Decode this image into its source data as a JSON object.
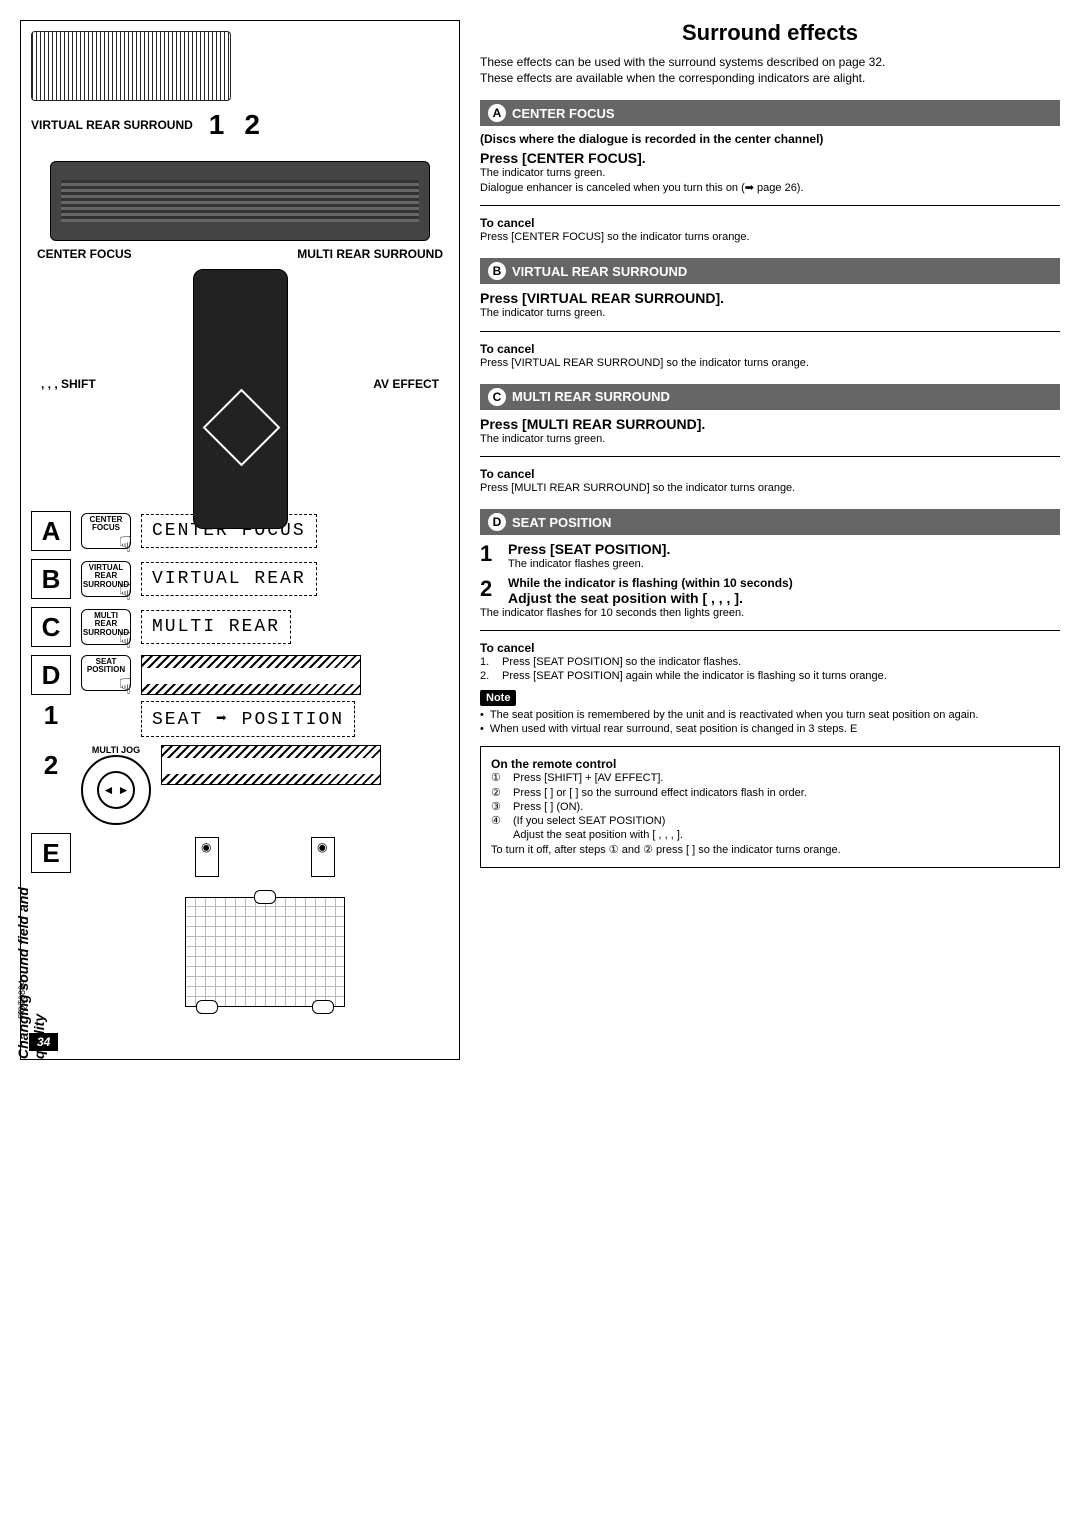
{
  "pageNumber": "34",
  "docId": "RQT6894",
  "sideHeading": "Changing sound field and quality",
  "title": "Surround effects",
  "intro1": "These effects can be used with the surround systems described on page 32.",
  "intro2": "These effects are available when the corresponding indicators are alight.",
  "secA": {
    "letter": "A",
    "heading": "CENTER FOCUS",
    "note": "(Discs where the dialogue is recorded in the center channel)",
    "press": "Press [CENTER FOCUS].",
    "ind": "The indicator turns green.",
    "extra": "Dialogue enhancer is canceled when you turn this on (➡ page 26).",
    "cancelH": "To cancel",
    "cancel": "Press [CENTER FOCUS] so the indicator turns orange."
  },
  "secB": {
    "letter": "B",
    "heading": "VIRTUAL REAR SURROUND",
    "press": "Press [VIRTUAL REAR SURROUND].",
    "ind": "The indicator turns green.",
    "cancelH": "To cancel",
    "cancel": "Press [VIRTUAL REAR SURROUND] so the indicator turns orange."
  },
  "secC": {
    "letter": "C",
    "heading": "MULTI REAR SURROUND",
    "press": "Press [MULTI REAR SURROUND].",
    "ind": "The indicator turns green.",
    "cancelH": "To cancel",
    "cancel": "Press [MULTI REAR SURROUND] so the indicator turns orange."
  },
  "secD": {
    "letter": "D",
    "heading": "SEAT POSITION",
    "s1h": "Press [SEAT POSITION].",
    "s1b": "The indicator flashes green.",
    "s2a": "While the indicator is flashing (within 10 seconds)",
    "s2b": "Adjust the seat position with [    ,    ,    ,    ].",
    "after": "The indicator flashes for 10 seconds then lights green.",
    "cancelH": "To cancel",
    "c1": "Press [SEAT POSITION] so the indicator flashes.",
    "c2": "Press [SEAT POSITION] again while the indicator is flashing so it turns orange.",
    "noteLabel": "Note",
    "n1": "The seat position is remembered by the unit and is reactivated when you turn seat position on again.",
    "n2": "When used with virtual rear surround, seat position is changed in 3 steps. E"
  },
  "remote": {
    "heading": "On the remote control",
    "r1": "Press [SHIFT] + [AV EFFECT].",
    "r2": "Press [   ] or [   ] so the surround effect indicators flash in order.",
    "r3": "Press [   ] (ON).",
    "r4": "(If you select SEAT POSITION)",
    "r4b": "Adjust the seat position with [   ,   ,   ,   ].",
    "off": "To turn it off, after steps ① and ② press [   ] so the indicator turns orange."
  },
  "left": {
    "topLabel": "VIRTUAL REAR SURROUND",
    "n1": "1",
    "n2": "2",
    "cfLabel": "CENTER FOCUS",
    "mrsLabel": "MULTI REAR SURROUND",
    "arrows": ",   ,   ,",
    "avEffect": "AV EFFECT",
    "shift": "SHIFT",
    "btnA": "CENTER\nFOCUS",
    "btnB": "VIRTUAL REAR\nSURROUND",
    "btnC": "MULTI REAR\nSURROUND",
    "btnD": "SEAT\nPOSITION",
    "jog": "MULTI JOG",
    "lcdA": "CENTER FOCUS",
    "lcdB": "VIRTUAL REAR",
    "lcdC": "MULTI REAR",
    "lcdD": "SEAT ➡ POSITION",
    "A": "A",
    "B": "B",
    "C": "C",
    "D": "D",
    "E": "E",
    "D1": "1",
    "D2": "2"
  }
}
